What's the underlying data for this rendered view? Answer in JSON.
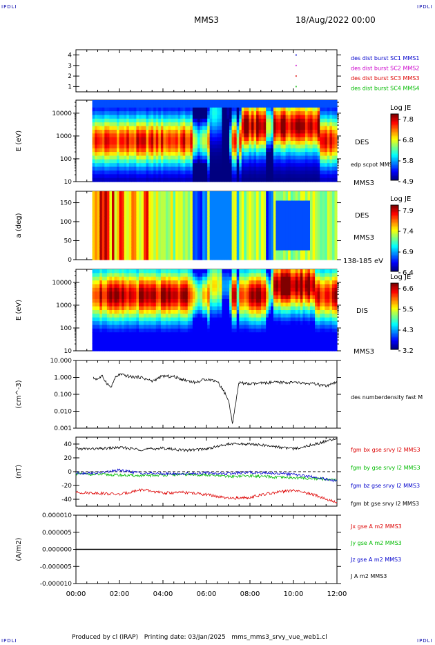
{
  "corner_label": "IPDLI",
  "header": {
    "mission": "MMS3",
    "date": "18/Aug/2022 00:00"
  },
  "footer": {
    "produced_by": "Produced by cl (IRAP)",
    "printing_date": "Printing date: 03/Jan/2025",
    "filename": "mms_mms3_srvy_vue_web1.cl"
  },
  "colors": {
    "mms1": "#0000cc",
    "mms2": "#cc00cc",
    "mms3": "#dd0000",
    "mms4": "#00bb00",
    "black": "#000000"
  },
  "chart_data": [
    {
      "type": "scatter",
      "id": "burst",
      "ylim": [
        0.5,
        4.5
      ],
      "yticks": [
        "1",
        "2",
        "3",
        "4"
      ],
      "legend": [
        "des dist burst SC1 MMS1",
        "des dist burst SC2 MMS2",
        "des dist burst SC3 MMS3",
        "des dist burst SC4 MMS4"
      ],
      "points": [
        {
          "x": 10.1,
          "y": 1
        },
        {
          "x": 10.1,
          "y": 2
        },
        {
          "x": 10.1,
          "y": 3
        },
        {
          "x": 10.1,
          "y": 4
        }
      ]
    },
    {
      "type": "heatmap",
      "id": "des_energy",
      "ylabel": "E (eV)",
      "scale": "log",
      "ylim": [
        10,
        30000
      ],
      "yticks": [
        "10",
        "100",
        "1000",
        "10000"
      ],
      "colorbar": {
        "title": "Log JE",
        "ticks": [
          "7.8",
          "6.8",
          "5.8",
          "4.9"
        ]
      },
      "right_labels": [
        "DES",
        "edp scpot MMS3",
        "MMS3"
      ]
    },
    {
      "type": "heatmap",
      "id": "des_pitch",
      "ylabel": "a (deg)",
      "ylim": [
        0,
        180
      ],
      "yticks": [
        "0",
        "50",
        "100",
        "150"
      ],
      "colorbar": {
        "title": "Log JE",
        "ticks": [
          "7.9",
          "7.4",
          "6.9",
          "6.4"
        ]
      },
      "right_labels": [
        "DES",
        "MMS3",
        "138-185 eV"
      ]
    },
    {
      "type": "heatmap",
      "id": "dis_energy",
      "ylabel": "E (eV)",
      "scale": "log",
      "ylim": [
        10,
        30000
      ],
      "yticks": [
        "10",
        "100",
        "1000",
        "10000"
      ],
      "colorbar": {
        "title": "Log JE",
        "ticks": [
          "6.6",
          "5.5",
          "4.3",
          "3.2"
        ]
      },
      "right_labels": [
        "DIS",
        "MMS3"
      ]
    },
    {
      "type": "line",
      "id": "density",
      "ylabel": "(cm^-3)",
      "scale": "log",
      "ylim": [
        0.001,
        10
      ],
      "yticks": [
        "0.001",
        "0.010",
        "0.100",
        "1.000",
        "10.000"
      ],
      "legend": [
        "des numberdensity fast M"
      ],
      "x": [
        0.8,
        1.0,
        1.2,
        1.4,
        1.6,
        1.8,
        2.0,
        2.5,
        3.0,
        3.5,
        4.0,
        4.5,
        5.0,
        5.5,
        6.0,
        6.5,
        6.8,
        7.0,
        7.2,
        7.5,
        8.0,
        9.0,
        10.0,
        11.0,
        11.5,
        12.0
      ],
      "y": [
        0.9,
        0.8,
        1.2,
        0.5,
        0.25,
        0.9,
        1.5,
        1.1,
        1.0,
        0.6,
        1.2,
        1.1,
        0.7,
        0.5,
        0.8,
        0.6,
        0.15,
        0.05,
        0.002,
        0.5,
        0.4,
        0.5,
        0.5,
        0.4,
        0.3,
        0.5
      ]
    },
    {
      "type": "line",
      "id": "bfield",
      "ylabel": "(nT)",
      "ylim": [
        -50,
        50
      ],
      "yticks": [
        "-40",
        "-20",
        "0",
        "20",
        "40"
      ],
      "legend": [
        "fgm bx gse srvy l2 MMS3",
        "fgm by gse srvy l2 MMS3",
        "fgm bz gse srvy l2 MMS3",
        "fgm bt gse srvy l2 MMS3"
      ],
      "x": [
        0,
        1,
        2,
        3,
        4,
        5,
        6,
        7,
        8,
        9,
        10,
        11,
        12
      ],
      "series": [
        {
          "values": [
            33,
            33,
            35,
            32,
            34,
            31,
            33,
            40,
            40,
            37,
            33,
            40,
            48
          ]
        },
        {
          "values": [
            -3,
            -4,
            -5,
            -6,
            -5,
            -4,
            -5,
            -7,
            -6,
            -8,
            -9,
            -10,
            -12
          ]
        },
        {
          "values": [
            -2,
            -2,
            2,
            -2,
            -3,
            -3,
            -2,
            -3,
            -1,
            -2,
            -4,
            -8,
            -14
          ]
        },
        {
          "values": [
            -30,
            -31,
            -33,
            -26,
            -31,
            -30,
            -33,
            -39,
            -37,
            -31,
            -27,
            -34,
            -45
          ]
        }
      ]
    },
    {
      "type": "line",
      "id": "current",
      "ylabel": "(A/m2)",
      "ylim": [
        -1e-05,
        1e-05
      ],
      "yticks": [
        "-0.000010",
        "-0.000005",
        "0.000000",
        "0.000005",
        "0.000010"
      ],
      "legend": [
        "Jx gse A m2 MMS3",
        "Jy gse A m2 MMS3",
        "Jz gse A m2 MMS3",
        "J A m2 MMS3"
      ],
      "x": [
        0,
        12
      ],
      "y": [
        0,
        0
      ]
    }
  ],
  "x_axis": {
    "ticks": [
      "00:00",
      "02:00",
      "04:00",
      "06:00",
      "08:00",
      "10:00",
      "12:00"
    ]
  }
}
